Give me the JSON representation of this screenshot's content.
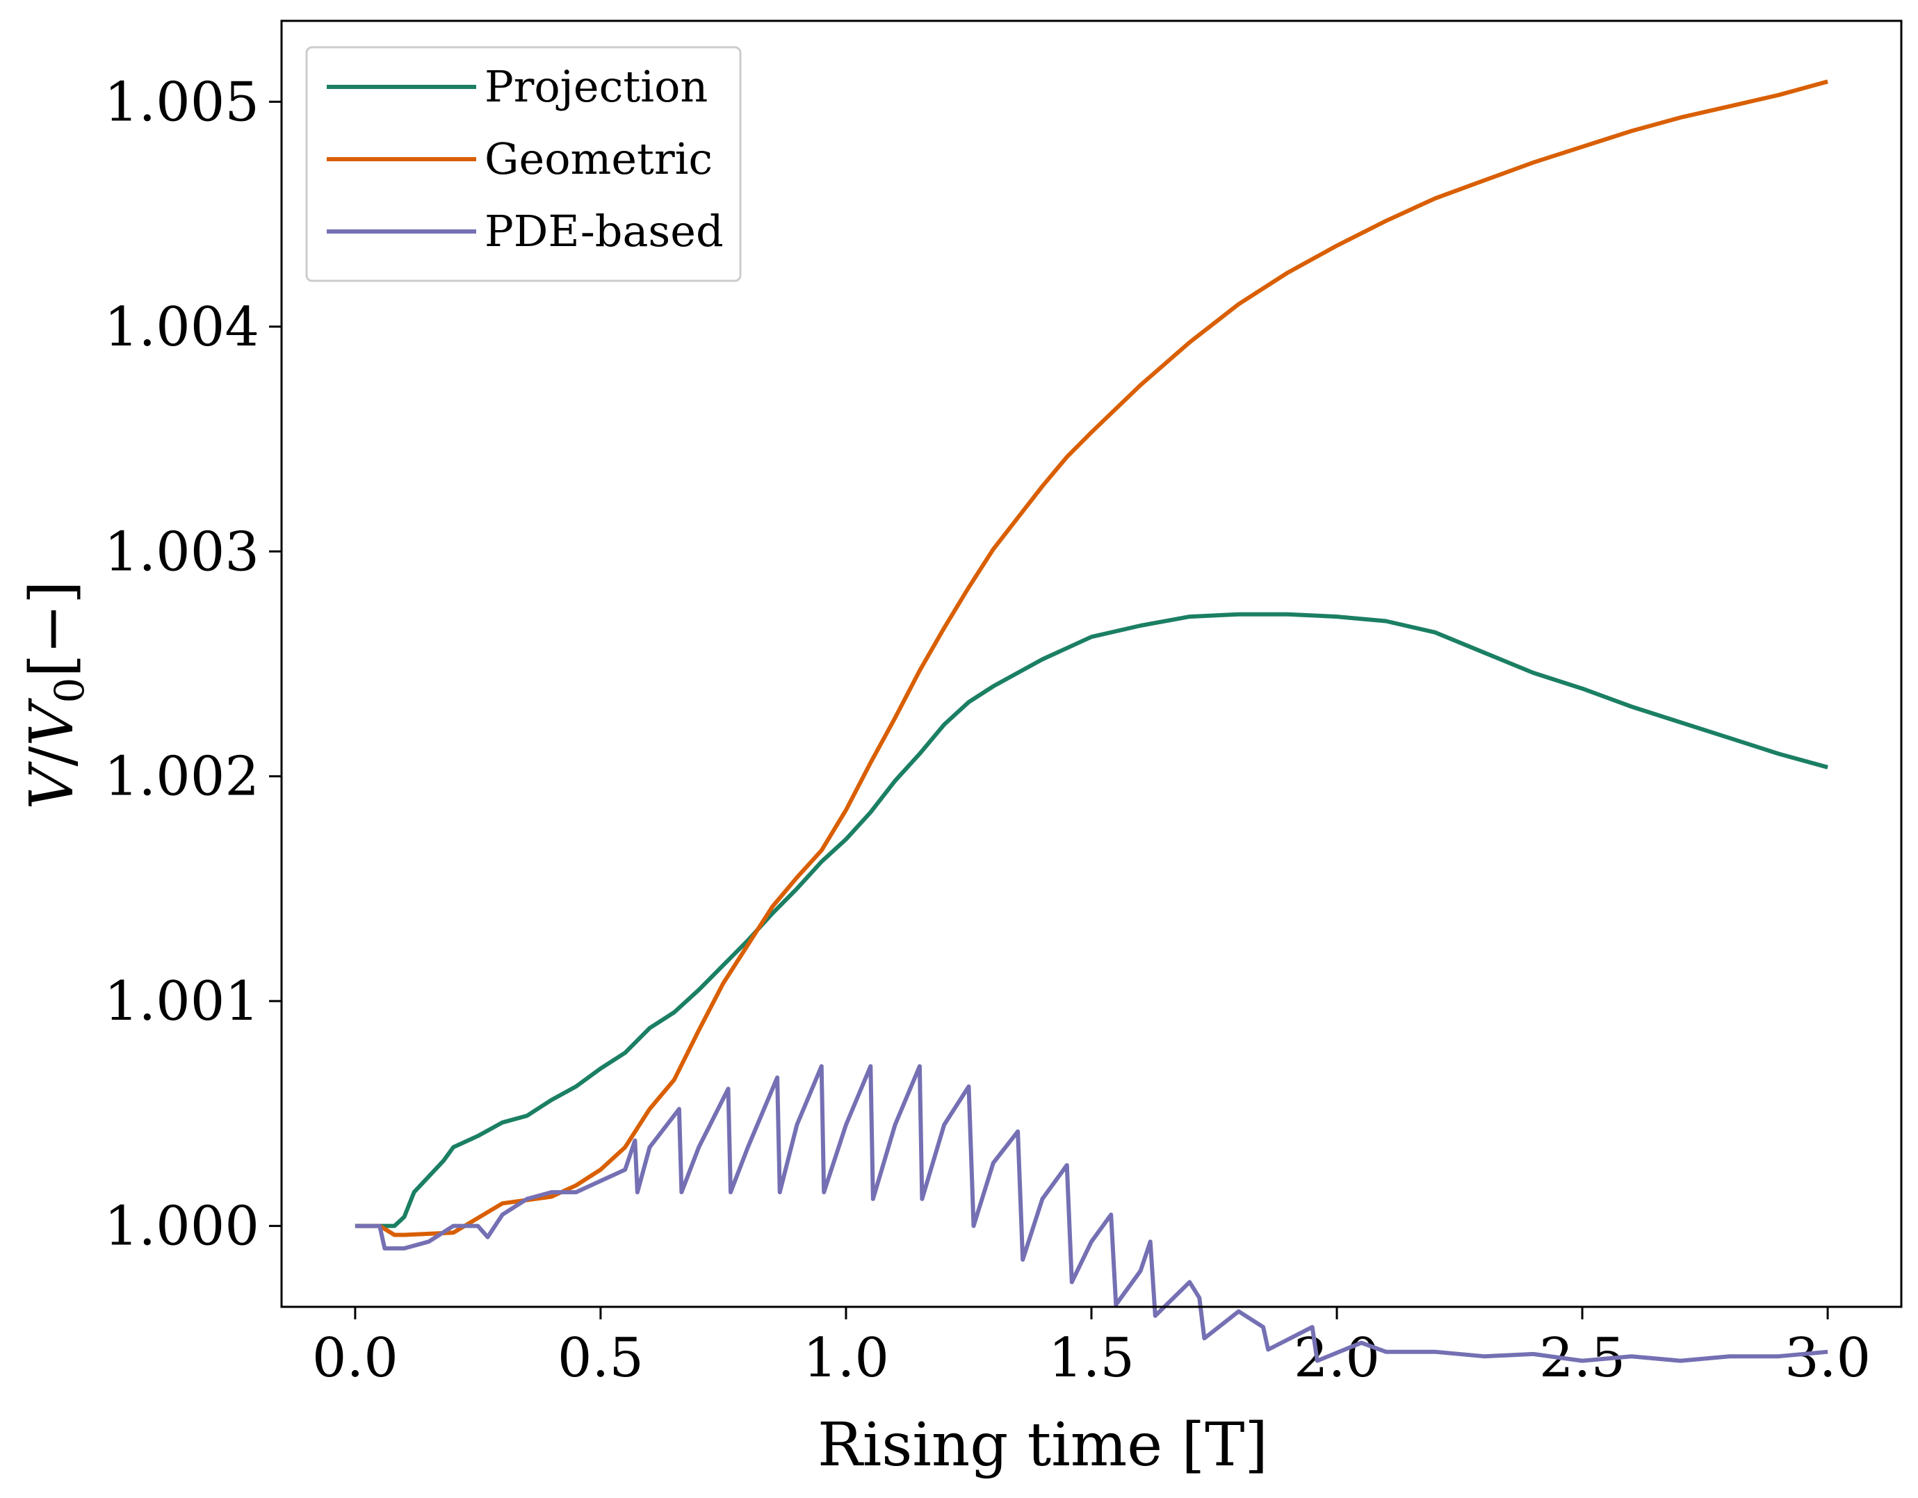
{
  "chart_data": {
    "type": "line",
    "title": "",
    "xlabel": "Rising time [T]",
    "ylabel_parts": {
      "var": "V",
      "slash": "/",
      "sub_var": "V",
      "sub": "0",
      "unit": "[−]"
    },
    "xlim": [
      -0.15,
      3.15
    ],
    "ylim": [
      0.99964,
      1.00536
    ],
    "xticks": [
      0.0,
      0.5,
      1.0,
      1.5,
      2.0,
      2.5,
      3.0
    ],
    "xtick_labels": [
      "0.0",
      "0.5",
      "1.0",
      "1.5",
      "2.0",
      "2.5",
      "3.0"
    ],
    "yticks": [
      1.0,
      1.001,
      1.002,
      1.003,
      1.004,
      1.005
    ],
    "ytick_labels": [
      "1.000",
      "1.001",
      "1.002",
      "1.003",
      "1.004",
      "1.005"
    ],
    "grid": false,
    "legend_position": "upper-left",
    "series": [
      {
        "name": "Projection",
        "color": "#1b7f63",
        "points": [
          [
            0.0,
            1.0
          ],
          [
            0.05,
            1.0
          ],
          [
            0.08,
            1.0
          ],
          [
            0.09,
            1.00002
          ],
          [
            0.1,
            1.00004
          ],
          [
            0.12,
            1.00015
          ],
          [
            0.15,
            1.00022
          ],
          [
            0.18,
            1.00029
          ],
          [
            0.2,
            1.00035
          ],
          [
            0.25,
            1.0004
          ],
          [
            0.3,
            1.00046
          ],
          [
            0.35,
            1.00049
          ],
          [
            0.4,
            1.00056
          ],
          [
            0.45,
            1.00062
          ],
          [
            0.5,
            1.0007
          ],
          [
            0.55,
            1.00077
          ],
          [
            0.6,
            1.00088
          ],
          [
            0.65,
            1.00095
          ],
          [
            0.7,
            1.00105
          ],
          [
            0.75,
            1.00116
          ],
          [
            0.8,
            1.00127
          ],
          [
            0.85,
            1.00139
          ],
          [
            0.9,
            1.0015
          ],
          [
            0.95,
            1.00162
          ],
          [
            1.0,
            1.00172
          ],
          [
            1.05,
            1.00184
          ],
          [
            1.1,
            1.00198
          ],
          [
            1.15,
            1.0021
          ],
          [
            1.2,
            1.00223
          ],
          [
            1.25,
            1.00233
          ],
          [
            1.3,
            1.0024
          ],
          [
            1.4,
            1.00252
          ],
          [
            1.5,
            1.00262
          ],
          [
            1.6,
            1.00267
          ],
          [
            1.7,
            1.00271
          ],
          [
            1.8,
            1.00272
          ],
          [
            1.9,
            1.00272
          ],
          [
            2.0,
            1.00271
          ],
          [
            2.1,
            1.00269
          ],
          [
            2.2,
            1.00264
          ],
          [
            2.3,
            1.00255
          ],
          [
            2.4,
            1.00246
          ],
          [
            2.5,
            1.00239
          ],
          [
            2.6,
            1.00231
          ],
          [
            2.7,
            1.00224
          ],
          [
            2.8,
            1.00217
          ],
          [
            2.9,
            1.0021
          ],
          [
            3.0,
            1.00204
          ]
        ]
      },
      {
        "name": "Geometric",
        "color": "#d95f02",
        "points": [
          [
            0.0,
            1.0
          ],
          [
            0.05,
            1.0
          ],
          [
            0.08,
            0.99996
          ],
          [
            0.1,
            0.99996
          ],
          [
            0.2,
            0.99997
          ],
          [
            0.3,
            1.0001
          ],
          [
            0.4,
            1.00013
          ],
          [
            0.45,
            1.00018
          ],
          [
            0.5,
            1.00025
          ],
          [
            0.55,
            1.00035
          ],
          [
            0.6,
            1.00052
          ],
          [
            0.65,
            1.00065
          ],
          [
            0.7,
            1.00087
          ],
          [
            0.75,
            1.00108
          ],
          [
            0.8,
            1.00125
          ],
          [
            0.85,
            1.00142
          ],
          [
            0.9,
            1.00155
          ],
          [
            0.95,
            1.00167
          ],
          [
            1.0,
            1.00185
          ],
          [
            1.05,
            1.00206
          ],
          [
            1.1,
            1.00226
          ],
          [
            1.15,
            1.00247
          ],
          [
            1.2,
            1.00266
          ],
          [
            1.25,
            1.00284
          ],
          [
            1.3,
            1.00301
          ],
          [
            1.35,
            1.00315
          ],
          [
            1.4,
            1.00329
          ],
          [
            1.45,
            1.00342
          ],
          [
            1.5,
            1.00353
          ],
          [
            1.6,
            1.00374
          ],
          [
            1.7,
            1.00393
          ],
          [
            1.8,
            1.0041
          ],
          [
            1.9,
            1.00424
          ],
          [
            2.0,
            1.00436
          ],
          [
            2.1,
            1.00447
          ],
          [
            2.2,
            1.00457
          ],
          [
            2.3,
            1.00465
          ],
          [
            2.4,
            1.00473
          ],
          [
            2.5,
            1.0048
          ],
          [
            2.6,
            1.00487
          ],
          [
            2.7,
            1.00493
          ],
          [
            2.8,
            1.00498
          ],
          [
            2.9,
            1.00503
          ],
          [
            3.0,
            1.00509
          ]
        ]
      },
      {
        "name": "PDE-based",
        "color": "#7570b3",
        "points": [
          [
            0.0,
            1.0
          ],
          [
            0.05,
            1.0
          ],
          [
            0.06,
            0.9999
          ],
          [
            0.1,
            0.9999
          ],
          [
            0.15,
            0.99993
          ],
          [
            0.2,
            1.0
          ],
          [
            0.25,
            1.0
          ],
          [
            0.27,
            0.99995
          ],
          [
            0.3,
            1.00005
          ],
          [
            0.35,
            1.00012
          ],
          [
            0.4,
            1.00015
          ],
          [
            0.45,
            1.00015
          ],
          [
            0.5,
            1.0002
          ],
          [
            0.55,
            1.00025
          ],
          [
            0.57,
            1.00038
          ],
          [
            0.575,
            1.00015
          ],
          [
            0.6,
            1.00035
          ],
          [
            0.66,
            1.00052
          ],
          [
            0.665,
            1.00015
          ],
          [
            0.7,
            1.00035
          ],
          [
            0.76,
            1.00061
          ],
          [
            0.765,
            1.00015
          ],
          [
            0.8,
            1.00035
          ],
          [
            0.86,
            1.00066
          ],
          [
            0.865,
            1.00015
          ],
          [
            0.9,
            1.00045
          ],
          [
            0.95,
            1.00071
          ],
          [
            0.955,
            1.00015
          ],
          [
            1.0,
            1.00045
          ],
          [
            1.05,
            1.00071
          ],
          [
            1.055,
            1.00012
          ],
          [
            1.1,
            1.00045
          ],
          [
            1.15,
            1.00071
          ],
          [
            1.155,
            1.00012
          ],
          [
            1.2,
            1.00045
          ],
          [
            1.25,
            1.00062
          ],
          [
            1.26,
            1.0
          ],
          [
            1.3,
            1.00028
          ],
          [
            1.35,
            1.00042
          ],
          [
            1.36,
            0.99985
          ],
          [
            1.4,
            1.00012
          ],
          [
            1.45,
            1.00027
          ],
          [
            1.46,
            0.99975
          ],
          [
            1.5,
            0.99993
          ],
          [
            1.54,
            1.00005
          ],
          [
            1.55,
            0.99965
          ],
          [
            1.6,
            0.9998
          ],
          [
            1.62,
            0.99993
          ],
          [
            1.63,
            0.9996
          ],
          [
            1.7,
            0.99975
          ],
          [
            1.72,
            0.99968
          ],
          [
            1.73,
            0.9995
          ],
          [
            1.8,
            0.99962
          ],
          [
            1.85,
            0.99955
          ],
          [
            1.86,
            0.99945
          ],
          [
            1.95,
            0.99955
          ],
          [
            1.96,
            0.9994
          ],
          [
            2.05,
            0.99948
          ],
          [
            2.1,
            0.99944
          ],
          [
            2.2,
            0.99944
          ],
          [
            2.3,
            0.99942
          ],
          [
            2.4,
            0.99943
          ],
          [
            2.5,
            0.9994
          ],
          [
            2.6,
            0.99942
          ],
          [
            2.7,
            0.9994
          ],
          [
            2.8,
            0.99942
          ],
          [
            2.9,
            0.99942
          ],
          [
            3.0,
            0.99944
          ]
        ]
      }
    ]
  }
}
